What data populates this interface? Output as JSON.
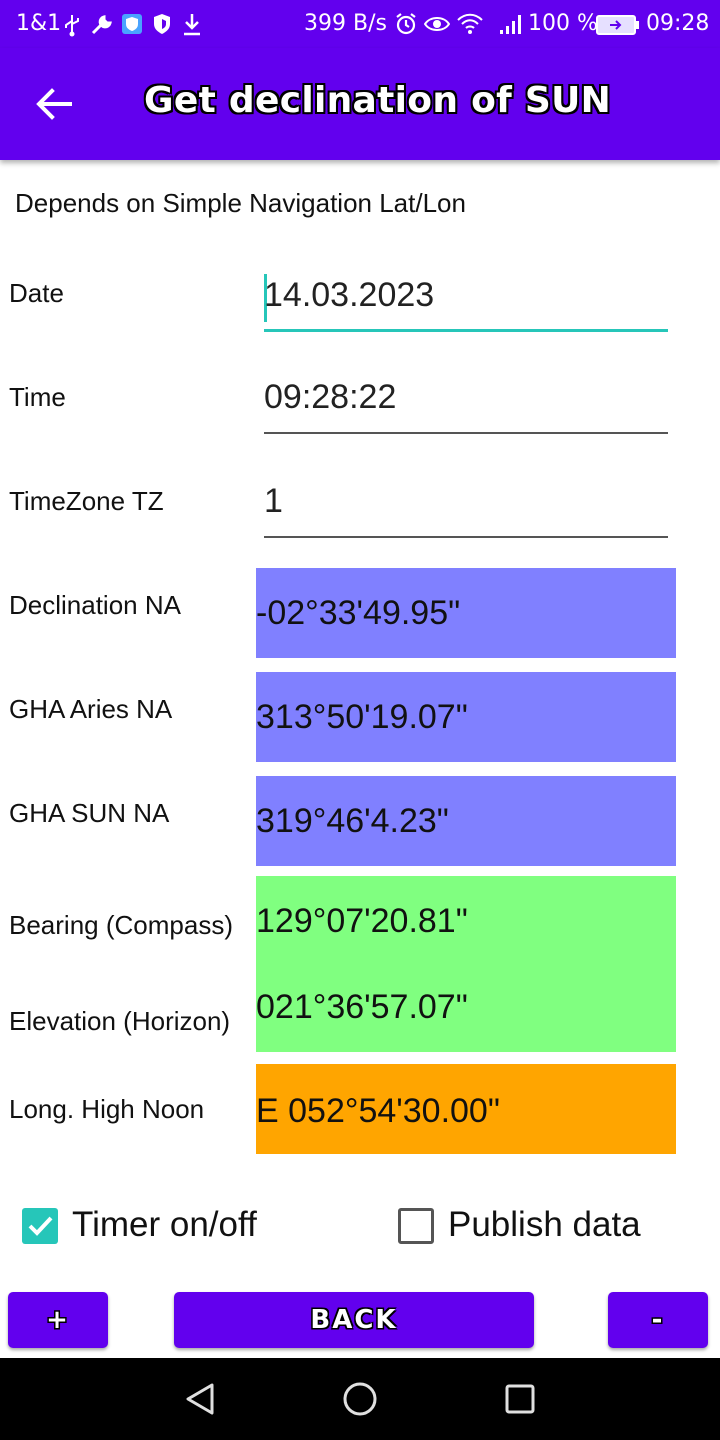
{
  "status_bar": {
    "carrier": "1&1",
    "net_speed": "399 B/s",
    "battery": "100 %",
    "time": "09:28"
  },
  "app_bar": {
    "title": "Get declination of SUN"
  },
  "subtitle": "Depends on Simple Navigation Lat/Lon",
  "inputs": {
    "date_label": "Date",
    "date_value": "14.03.2023",
    "time_label": "Time",
    "time_value": "09:28:22",
    "tz_label": "TimeZone TZ",
    "tz_value": "1"
  },
  "results": {
    "declination_label": "Declination NA",
    "declination_value": "-02°33'49.95\"",
    "gha_aries_label": "GHA Aries NA",
    "gha_aries_value": "313°50'19.07\"",
    "gha_sun_label": "GHA SUN NA",
    "gha_sun_value": "319°46'4.23\"",
    "bearing_label": "Bearing (Compass)",
    "bearing_value": "129°07'20.81\"",
    "elevation_label": "Elevation (Horizon)",
    "elevation_value": "021°36'57.07\"",
    "high_noon_label": "Long. High Noon",
    "high_noon_value": "E 052°54'30.00\""
  },
  "options": {
    "timer_label": "Timer on/off",
    "timer_checked": true,
    "publish_label": "Publish data",
    "publish_checked": false
  },
  "buttons": {
    "plus": "+",
    "back": "BACK",
    "minus": "-"
  },
  "colors": {
    "primary": "#6200ee",
    "accent": "#26c6b9",
    "blue_box": "#8080ff",
    "green_box": "#80ff80",
    "orange_box": "#ffa500"
  },
  "icons": [
    "usb-icon",
    "wrench-icon",
    "shield-icon",
    "download-icon",
    "alarm-icon",
    "eye-icon",
    "wifi-icon",
    "signal-icon",
    "battery-icon",
    "back-arrow-icon",
    "checkbox-icon",
    "nav-back-icon",
    "nav-home-icon",
    "nav-recents-icon"
  ]
}
